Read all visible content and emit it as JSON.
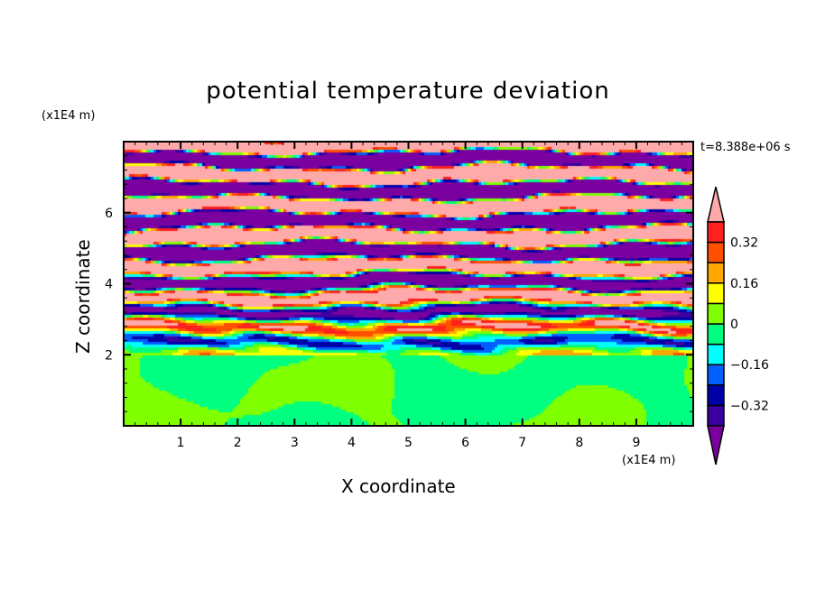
{
  "chart_data": {
    "type": "heatmap",
    "title": "potential temperature deviation",
    "xlabel": "X coordinate",
    "ylabel": "Z coordinate",
    "x_unit": "(x1E4 m)",
    "y_unit": "(x1E4 m)",
    "xlim": [
      0,
      10
    ],
    "ylim": [
      0,
      8
    ],
    "x_ticks": [
      "1",
      "2",
      "3",
      "4",
      "5",
      "6",
      "7",
      "8",
      "9"
    ],
    "y_ticks": [
      "2",
      "4",
      "6"
    ],
    "time_label": "t=8.388e+06 s",
    "levels": [
      -0.4,
      -0.32,
      -0.24,
      -0.16,
      -0.08,
      0,
      0.08,
      0.16,
      0.24,
      0.32,
      0.4
    ],
    "colorbar_labels": [
      "0.32",
      "0.16",
      "0",
      "-0.16",
      "-0.32"
    ],
    "colorbar_label_values": [
      0.32,
      0.16,
      0,
      -0.16,
      -0.32
    ],
    "colors": [
      "#7b00a0",
      "#3a00a0",
      "#0000a8",
      "#0060ff",
      "#00ffff",
      "#00ff80",
      "#80ff00",
      "#ffff00",
      "#ffa800",
      "#ff5000",
      "#ff2020",
      "#ffaaaa"
    ],
    "legend_position": "right"
  }
}
